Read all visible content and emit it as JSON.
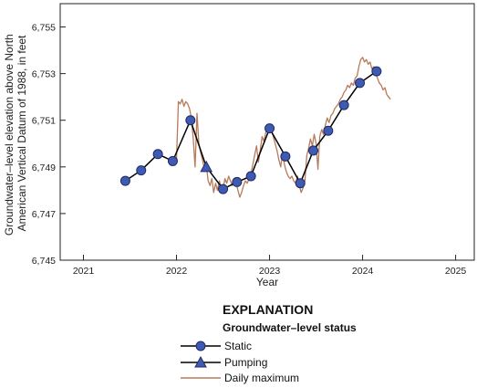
{
  "chart_data": {
    "type": "line",
    "title": "",
    "xlabel": "Year",
    "ylabel_lines": [
      "Groundwater–level elevation above North",
      "American Vertical Datum of 1988, in feet"
    ],
    "xlim": [
      2020.75,
      2025.2
    ],
    "ylim": [
      6745,
      6756
    ],
    "x_ticks": [
      2021,
      2022,
      2023,
      2024,
      2025
    ],
    "x_tick_labels": [
      "2021",
      "2022",
      "2023",
      "2024",
      "2025"
    ],
    "y_ticks": [
      6745,
      6747,
      6749,
      6751,
      6753,
      6755
    ],
    "y_tick_labels": [
      "6,745",
      "6,747",
      "6,749",
      "6,751",
      "6,753",
      "6,755"
    ],
    "grid": false,
    "colors": {
      "marker_fill": "#3f5bb0",
      "marker_edge": "#1d2a6b",
      "manual_line": "#000000",
      "daily": "#b77a5a"
    },
    "series": [
      {
        "name": "Static",
        "x": [
          2021.45,
          2021.62,
          2021.8,
          2021.96,
          2022.15,
          2022.5,
          2022.65,
          2022.8,
          2023.0,
          2023.17,
          2023.33,
          2023.47,
          2023.63,
          2023.8,
          2023.97,
          2024.15
        ],
        "y": [
          6748.4,
          6748.85,
          6749.55,
          6749.25,
          6751.0,
          6748.05,
          6748.35,
          6748.6,
          6750.65,
          6749.45,
          6748.3,
          6749.7,
          6750.55,
          6751.65,
          6752.6,
          6753.1
        ]
      },
      {
        "name": "Pumping",
        "x": [
          2022.32
        ],
        "y": [
          6749.0
        ]
      },
      {
        "name": "Daily maximum",
        "x": [
          2022.0,
          2022.02,
          2022.04,
          2022.06,
          2022.08,
          2022.1,
          2022.12,
          2022.14,
          2022.16,
          2022.18,
          2022.2,
          2022.22,
          2022.24,
          2022.26,
          2022.28,
          2022.3,
          2022.32,
          2022.34,
          2022.36,
          2022.38,
          2022.4,
          2022.42,
          2022.44,
          2022.46,
          2022.48,
          2022.5,
          2022.52,
          2022.54,
          2022.56,
          2022.58,
          2022.6,
          2022.62,
          2022.64,
          2022.66,
          2022.68,
          2022.7,
          2022.72,
          2022.74,
          2022.76,
          2022.78,
          2022.8,
          2022.82,
          2022.84,
          2022.86,
          2022.88,
          2022.9,
          2022.92,
          2022.94,
          2022.96,
          2022.98,
          2023.0,
          2023.02,
          2023.04,
          2023.06,
          2023.08,
          2023.1,
          2023.12,
          2023.14,
          2023.16,
          2023.18,
          2023.2,
          2023.22,
          2023.24,
          2023.26,
          2023.28,
          2023.3,
          2023.32,
          2023.34,
          2023.36,
          2023.38,
          2023.4,
          2023.42,
          2023.44,
          2023.46,
          2023.48,
          2023.5,
          2023.52,
          2023.54,
          2023.56,
          2023.58,
          2023.6,
          2023.62,
          2023.64,
          2023.66,
          2023.68,
          2023.7,
          2023.72,
          2023.74,
          2023.76,
          2023.78,
          2023.8,
          2023.82,
          2023.84,
          2023.86,
          2023.88,
          2023.9,
          2023.92,
          2023.94,
          2023.96,
          2023.98,
          2024.0,
          2024.02,
          2024.04,
          2024.06,
          2024.08,
          2024.1,
          2024.12,
          2024.14,
          2024.16,
          2024.18,
          2024.2,
          2024.22,
          2024.24,
          2024.26,
          2024.28,
          2024.3
        ],
        "y": [
          6749.3,
          6751.8,
          6751.7,
          6751.9,
          6751.6,
          6751.8,
          6751.7,
          6751.5,
          6751.1,
          6750.2,
          6749.0,
          6751.3,
          6750.0,
          6749.6,
          6749.3,
          6748.9,
          6749.1,
          6748.4,
          6748.2,
          6748.5,
          6747.9,
          6748.3,
          6748.0,
          6748.4,
          6748.1,
          6748.0,
          6748.5,
          6748.3,
          6748.6,
          6748.4,
          6748.2,
          6748.5,
          6748.3,
          6748.0,
          6747.7,
          6747.9,
          6748.2,
          6748.4,
          6748.3,
          6748.5,
          6748.7,
          6749.1,
          6749.5,
          6749.9,
          6749.2,
          6749.7,
          6750.3,
          6750.1,
          6750.5,
          6750.7,
          6750.5,
          6750.6,
          6750.3,
          6750.0,
          6749.7,
          6749.3,
          6749.0,
          6749.6,
          6749.1,
          6748.8,
          6748.6,
          6748.5,
          6748.6,
          6748.4,
          6748.3,
          6748.6,
          6748.2,
          6747.9,
          6748.1,
          6748.4,
          6749.5,
          6749.8,
          6750.2,
          6749.9,
          6750.4,
          6750.0,
          6748.9,
          6750.3,
          6750.6,
          6750.4,
          6750.8,
          6751.1,
          6750.9,
          6751.2,
          6751.3,
          6751.5,
          6751.6,
          6751.7,
          6751.9,
          6752.0,
          6752.2,
          6752.3,
          6752.5,
          6752.4,
          6752.6,
          6752.5,
          6752.8,
          6752.9,
          6753.3,
          6753.6,
          6753.7,
          6753.5,
          6753.6,
          6753.4,
          6753.5,
          6753.2,
          6753.3,
          6753.0,
          6752.8,
          6752.6,
          6752.5,
          6752.3,
          6752.4,
          6752.1,
          6752.0,
          6751.9
        ]
      }
    ]
  },
  "legend": {
    "title": "EXPLANATION",
    "subtitle": "Groundwater–level status",
    "items": [
      "Static",
      "Pumping",
      "Daily maximum"
    ]
  }
}
